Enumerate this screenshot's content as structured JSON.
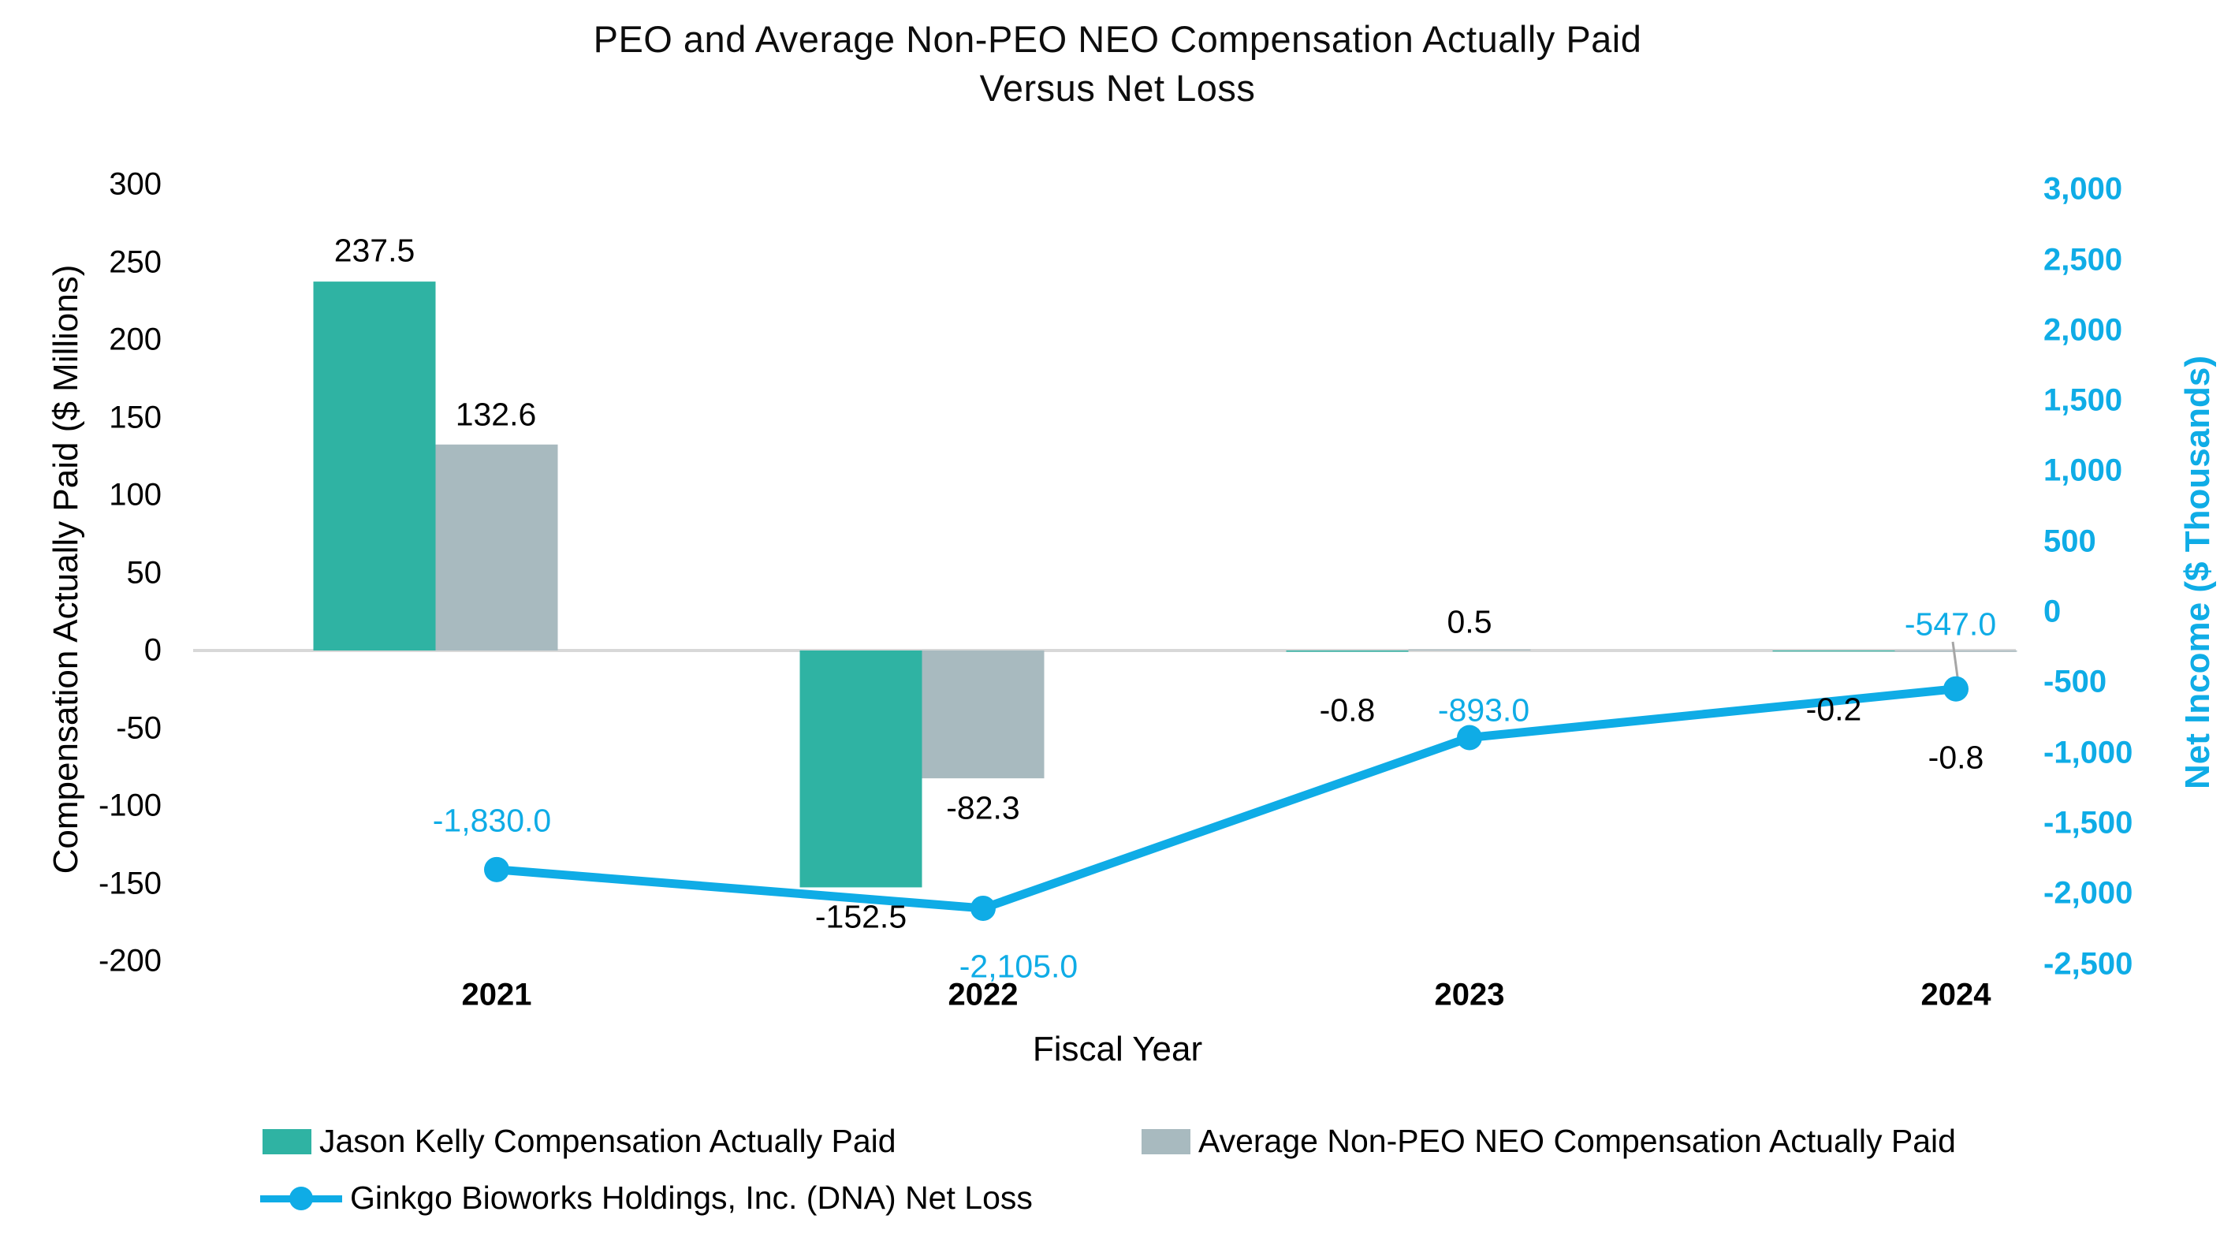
{
  "title": {
    "line1": "PEO and Average Non-PEO NEO Compensation Actually Paid",
    "line2": "Versus Net Loss"
  },
  "colors": {
    "teal": "#2FB3A3",
    "gray": "#A8BABF",
    "blue": "#0FACE6",
    "axis_line": "#D8D8D8",
    "leader_line": "#A6A6A6",
    "text": "#000000"
  },
  "chart_data": {
    "type": "combo",
    "categories": [
      "2021",
      "2022",
      "2023",
      "2024"
    ],
    "bar_series": [
      {
        "name": "Jason Kelly Compensation Actually Paid",
        "axis": "left",
        "color_key": "teal",
        "values": [
          237.5,
          -152.5,
          -0.8,
          -0.2
        ],
        "labels": [
          "237.5",
          "-152.5",
          "-0.8",
          "-0.2"
        ]
      },
      {
        "name": "Average Non-PEO NEO Compensation Actually Paid",
        "axis": "left",
        "color_key": "gray",
        "values": [
          132.6,
          -82.3,
          0.5,
          -0.8
        ],
        "labels": [
          "132.6",
          "-82.3",
          "0.5",
          "-0.8"
        ]
      }
    ],
    "line_series": {
      "name": "Ginkgo Bioworks Holdings, Inc. (DNA) Net Loss",
      "axis": "right",
      "color_key": "blue",
      "values": [
        -1830.0,
        -2105.0,
        -893.0,
        -547.0
      ],
      "labels": [
        "-1,830.0",
        "-2,105.0",
        "-893.0",
        "-547.0"
      ]
    },
    "left_axis": {
      "title": "Compensation Actually Paid ($ Millions)",
      "min": -200,
      "max": 300,
      "step": 50,
      "tick_labels": [
        "300",
        "250",
        "200",
        "150",
        "100",
        "50",
        "0",
        "-50",
        "-100",
        "-150",
        "-200"
      ]
    },
    "right_axis": {
      "title": "Net Income ($ Thousands)",
      "min": -2500,
      "max": 3000,
      "step": 500,
      "tick_labels": [
        "3,000",
        "2,500",
        "2,000",
        "1,500",
        "1,000",
        "500",
        "0",
        "-500",
        "-1,000",
        "-1,500",
        "-2,000",
        "-2,500"
      ]
    },
    "x_axis": {
      "title": "Fiscal Year"
    },
    "gridlines": "zero-only",
    "legend_position": "bottom"
  }
}
